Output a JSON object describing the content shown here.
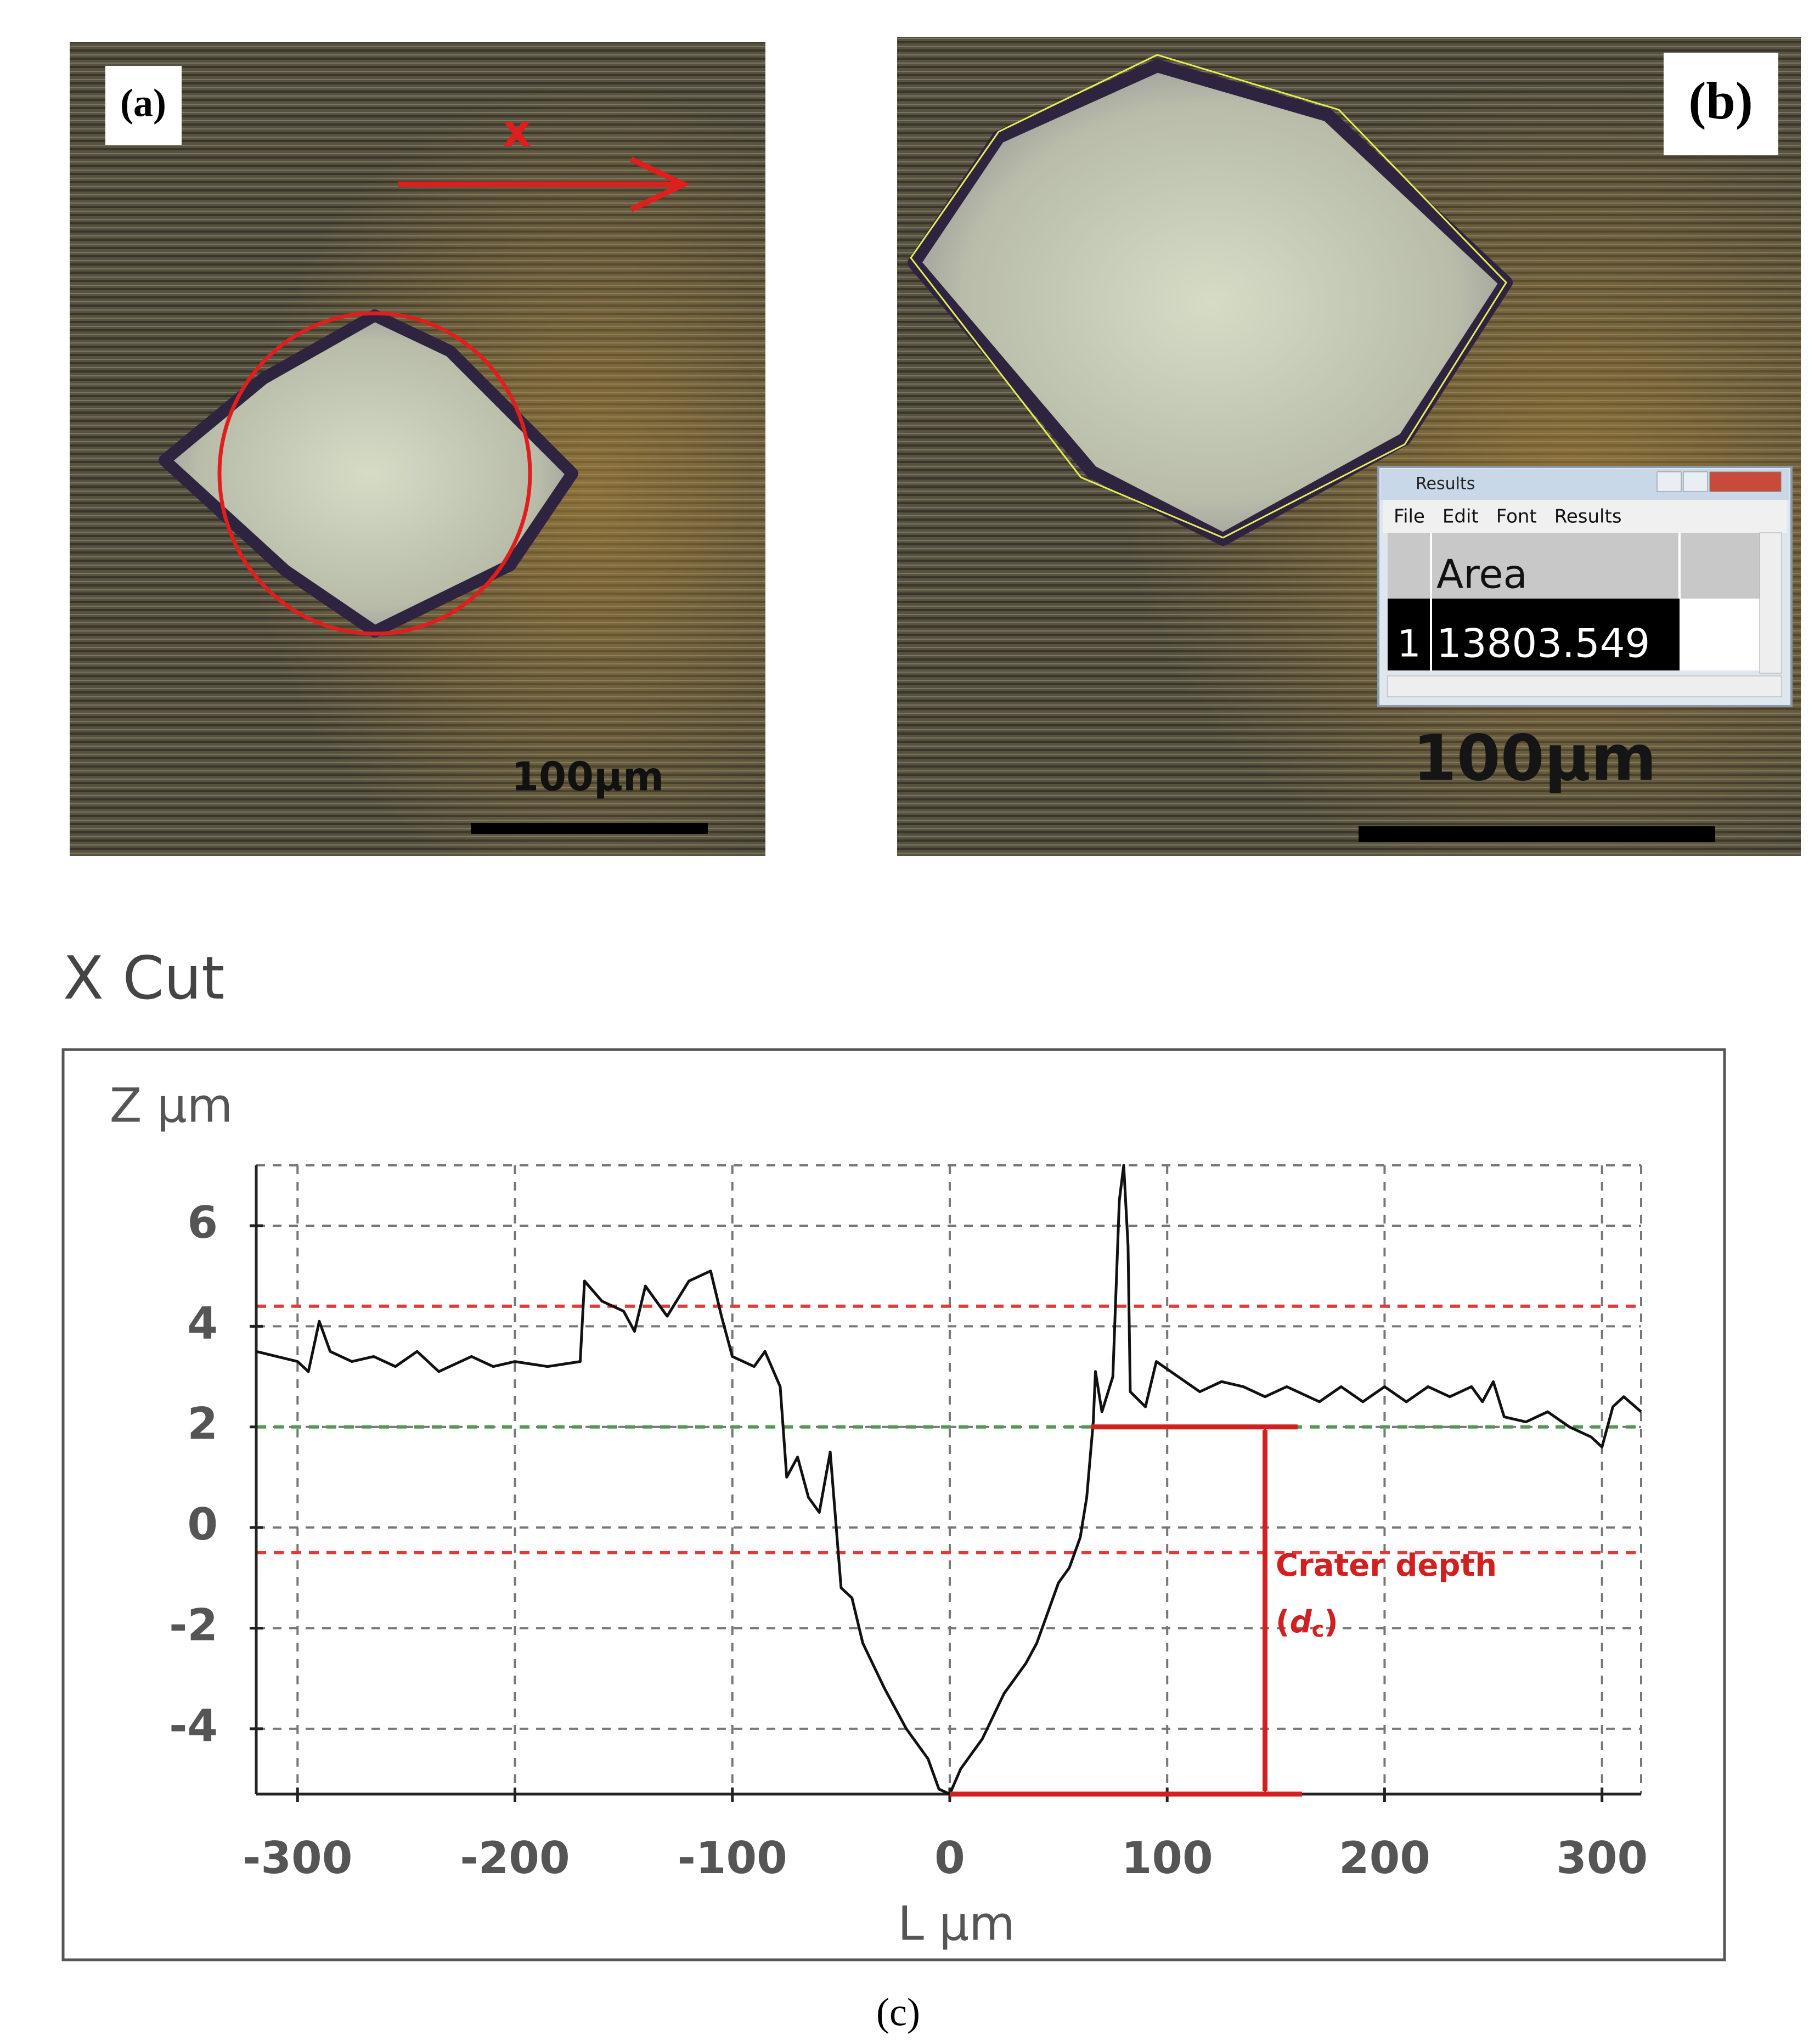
{
  "panels": {
    "a": {
      "label": "(a)",
      "axis_label": "x",
      "scale_bar": "100µm"
    },
    "b": {
      "label": "(b)",
      "scale_bar": "100µm",
      "results_window": {
        "title": "Results",
        "menu": [
          "File",
          "Edit",
          "Font",
          "Results"
        ],
        "column": "Area",
        "row_index": 1,
        "area": 13803.549
      }
    },
    "c": {
      "label": "(c)"
    }
  },
  "chart_data": {
    "type": "line",
    "title": "X Cut",
    "y_label": "Z µm",
    "x_label": "L µm",
    "color": "#111111",
    "x": [
      -319,
      -300,
      -295,
      -290,
      -285,
      -275,
      -265,
      -255,
      -245,
      -235,
      -220,
      -210,
      -200,
      -185,
      -170,
      -168,
      -160,
      -150,
      -145,
      -140,
      -130,
      -120,
      -110,
      -105,
      -100,
      -90,
      -85,
      -78,
      -75,
      -70,
      -65,
      -60,
      -55,
      -50,
      -45,
      -40,
      -30,
      -20,
      -10,
      -5,
      0,
      5,
      15,
      25,
      35,
      40,
      50,
      55,
      60,
      63,
      66,
      67,
      70,
      75,
      78,
      80,
      82,
      83,
      90,
      95,
      105,
      115,
      125,
      135,
      145,
      155,
      170,
      180,
      190,
      200,
      210,
      220,
      230,
      240,
      245,
      250,
      255,
      265,
      275,
      285,
      295,
      300,
      305,
      310,
      318
    ],
    "values": [
      3.5,
      3.3,
      3.1,
      4.1,
      3.5,
      3.3,
      3.4,
      3.2,
      3.5,
      3.1,
      3.4,
      3.2,
      3.3,
      3.2,
      3.3,
      4.9,
      4.5,
      4.3,
      3.9,
      4.8,
      4.2,
      4.9,
      5.1,
      4.2,
      3.4,
      3.2,
      3.5,
      2.8,
      1.0,
      1.4,
      0.6,
      0.3,
      1.5,
      -1.2,
      -1.4,
      -2.3,
      -3.2,
      -4.0,
      -4.6,
      -5.2,
      -5.3,
      -4.8,
      -4.2,
      -3.3,
      -2.7,
      -2.3,
      -1.1,
      -0.8,
      -0.2,
      0.6,
      2.1,
      3.1,
      2.3,
      3.0,
      6.5,
      7.2,
      5.6,
      2.7,
      2.4,
      3.3,
      3.0,
      2.7,
      2.9,
      2.8,
      2.6,
      2.8,
      2.5,
      2.8,
      2.5,
      2.8,
      2.5,
      2.8,
      2.6,
      2.8,
      2.5,
      2.9,
      2.2,
      2.1,
      2.3,
      2.0,
      1.8,
      1.6,
      2.4,
      2.6,
      2.3
    ],
    "xlim": [
      -319,
      318
    ],
    "ylim": [
      -5.3,
      7.2
    ],
    "xticks": [
      -300,
      -200,
      -100,
      0,
      100,
      200,
      300
    ],
    "yticks": [
      -4,
      -2,
      0,
      2,
      4,
      6
    ],
    "grid": true,
    "reference_lines": [
      {
        "y": 4.4,
        "color": "#e03a3a"
      },
      {
        "y": 2,
        "color": "#4f9a4f"
      },
      {
        "y": -0.5,
        "color": "#e03a3a"
      }
    ],
    "annotation": {
      "text": "Crater depth",
      "symbol": [
        "(",
        "d",
        "c",
        ")"
      ],
      "color": "#d21f1f",
      "x": 145,
      "y_top": 2,
      "y_bottom": -5.3,
      "lines": [
        {
          "x1": 65,
          "x2": 160,
          "y": 2
        },
        {
          "x1": 0,
          "x2": 162,
          "y": -5.3
        }
      ]
    }
  }
}
